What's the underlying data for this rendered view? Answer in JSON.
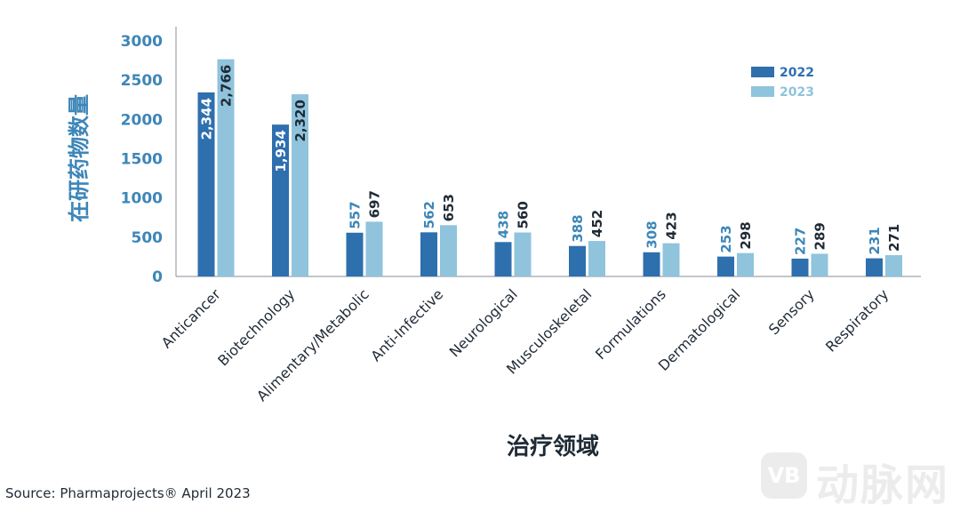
{
  "chart_data": {
    "type": "bar",
    "title": "",
    "ylabel": "在研药物数量",
    "xlabel": "治疗领域",
    "ylim": [
      0,
      3000
    ],
    "yticks": [
      0,
      500,
      1000,
      1500,
      2000,
      2500,
      3000
    ],
    "categories": [
      "Anticancer",
      "Biotechnology",
      "Alimentary/Metabolic",
      "Anti-Infective",
      "Neurological",
      "Musculoskeletal",
      "Formulations",
      "Dermatological",
      "Sensory",
      "Respiratory"
    ],
    "series": [
      {
        "name": "2022",
        "color": "#2e6fae",
        "values": [
          2344,
          1934,
          557,
          562,
          438,
          388,
          308,
          253,
          227,
          231
        ],
        "labels": [
          "2,344",
          "1,934",
          "557",
          "562",
          "438",
          "388",
          "308",
          "253",
          "227",
          "231"
        ]
      },
      {
        "name": "2023",
        "color": "#90c3dc",
        "values": [
          2766,
          2320,
          697,
          653,
          560,
          452,
          423,
          298,
          289,
          271
        ],
        "labels": [
          "2,766",
          "2,320",
          "697",
          "653",
          "560",
          "452",
          "423",
          "298",
          "289",
          "271"
        ]
      }
    ],
    "grid": false,
    "legend_position": "top-right",
    "axis_color": "#3d86b8"
  },
  "footer": {
    "source": "Source: Pharmaprojects® April 2023"
  },
  "watermark": {
    "text": "动脉网",
    "logo": "VB"
  }
}
